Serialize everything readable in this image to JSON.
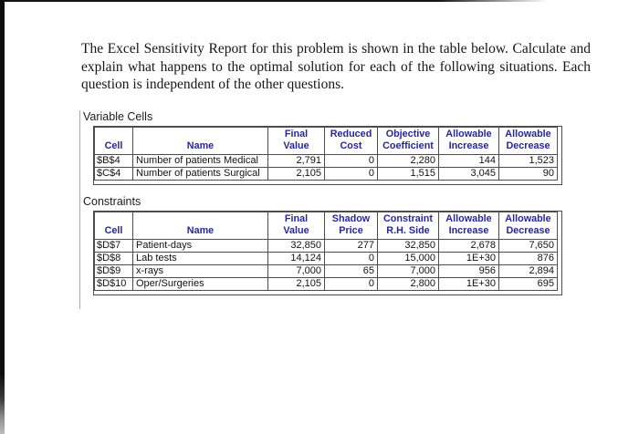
{
  "page": {
    "intro_paragraph": "The Excel Sensitivity Report for this problem is shown in the table below. Calculate and explain what happens to the optimal solution for each of the following situations. Each question is independent of the other questions."
  },
  "report": {
    "sections": [
      {
        "title": "Variable Cells",
        "columns": [
          "Cell",
          "Name",
          "Final\nValue",
          "Reduced\nCost",
          "Objective\nCoefficient",
          "Allowable\nIncrease",
          "Allowable\nDecrease"
        ],
        "rows": [
          [
            "$B$4",
            "Number of patients Medical",
            "2,791",
            "0",
            "2,280",
            "144",
            "1,523"
          ],
          [
            "$C$4",
            "Number of patients Surgical",
            "2,105",
            "0",
            "1,515",
            "3,045",
            "90"
          ]
        ]
      },
      {
        "title": "Constraints",
        "columns": [
          "Cell",
          "Name",
          "Final\nValue",
          "Shadow\nPrice",
          "Constraint\nR.H. Side",
          "Allowable\nIncrease",
          "Allowable\nDecrease"
        ],
        "rows": [
          [
            "$D$7",
            "Patient-days",
            "32,850",
            "277",
            "32,850",
            "2,678",
            "7,650"
          ],
          [
            "$D$8",
            "Lab tests",
            "14,124",
            "0",
            "15,000",
            "1E+30",
            "876"
          ],
          [
            "$D$9",
            "x-rays",
            "7,000",
            "65",
            "7,000",
            "956",
            "2,894"
          ],
          [
            "$D$10",
            "Oper/Surgeries",
            "2,105",
            "0",
            "2,800",
            "1E+30",
            "695"
          ]
        ]
      }
    ]
  },
  "colors": {
    "header_text": "#26269c",
    "table_border": "#4d4d4d",
    "scan_edge": "#0d0d0d"
  }
}
